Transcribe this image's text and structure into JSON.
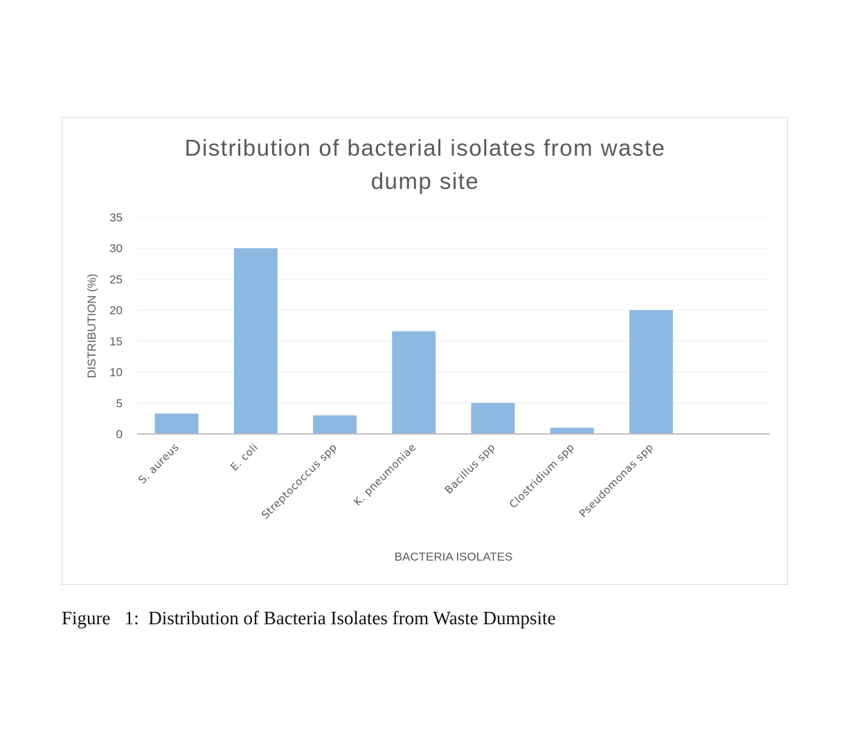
{
  "chart_data": {
    "type": "bar",
    "title_lines": [
      "Distribution of  bacterial isolates from waste",
      "dump site"
    ],
    "xlabel": "BACTERIA ISOLATES",
    "ylabel": "DISTRIBUTION (%)",
    "ylim": [
      0,
      35
    ],
    "yticks": [
      0,
      5,
      10,
      15,
      20,
      25,
      30,
      35
    ],
    "grid": true,
    "categories": [
      "S. aureus",
      "E. coli",
      "Streptococcus spp",
      "K. pneumoniae",
      "Bacillus spp",
      "Clostridium spp",
      "Pseudomonas spp"
    ],
    "values": [
      3.3,
      30,
      3,
      16.6,
      5,
      1,
      20
    ],
    "bar_color": "#8db8e2",
    "gridline_color": "#ececec",
    "axis_color": "#bfbfbf"
  },
  "caption": "Figure   1:  Distribution of Bacteria Isolates from Waste Dumpsite"
}
